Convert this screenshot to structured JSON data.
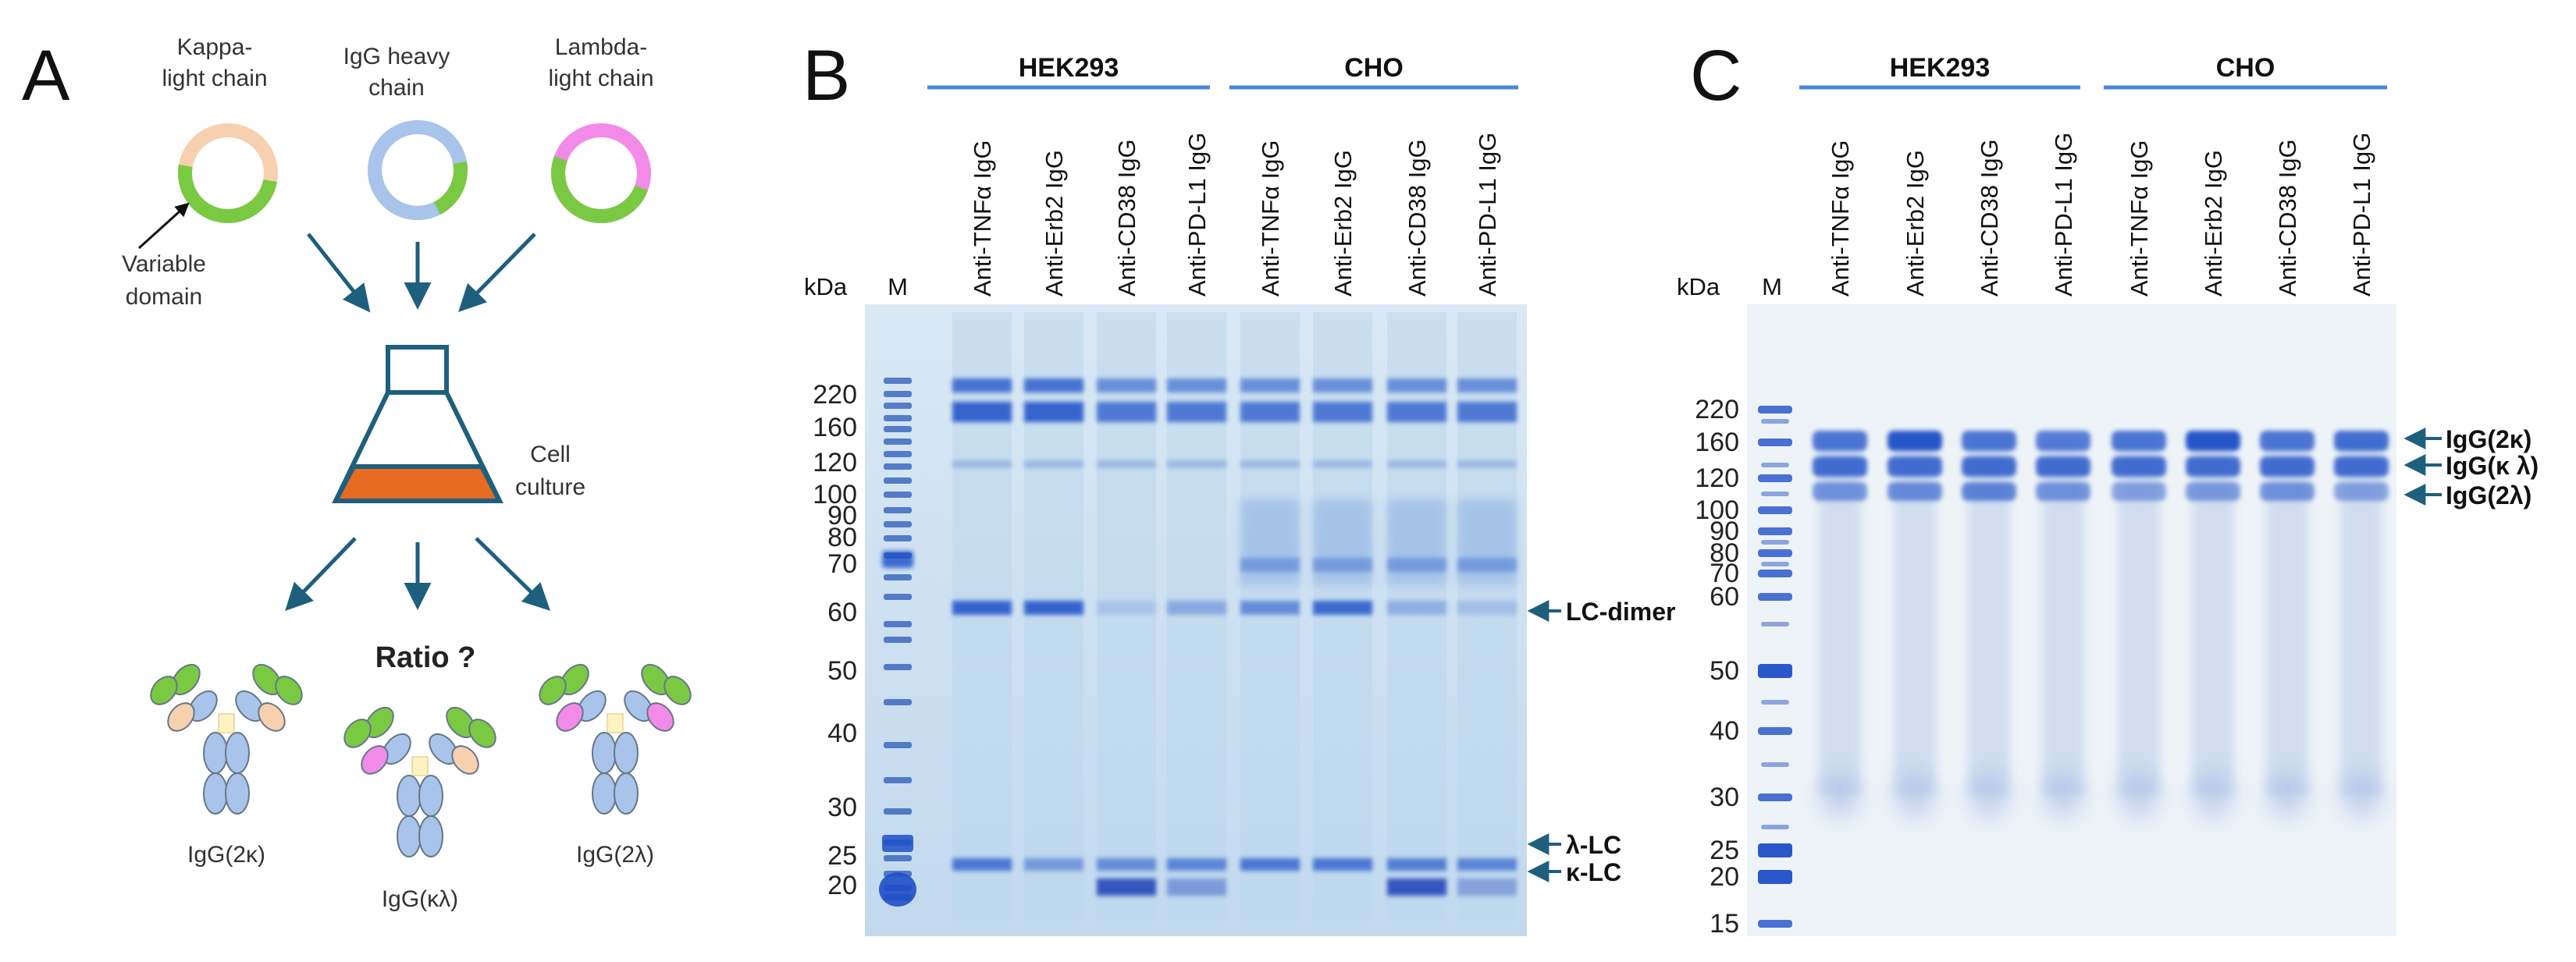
{
  "panel_a": {
    "letter": "A",
    "plasmids": [
      {
        "label_line1": "Kappa-",
        "label_line2": "light chain"
      },
      {
        "label_line1": "IgG heavy",
        "label_line2": "chain"
      },
      {
        "label_line1": "Lambda-",
        "label_line2": "light chain"
      }
    ],
    "variable_domain_line1": "Variable",
    "variable_domain_line2": "domain",
    "cell_culture_line1": "Cell",
    "cell_culture_line2": "culture",
    "ratio_label": "Ratio ?",
    "products": [
      "IgG(2κ)",
      "IgG(κλ)",
      "IgG(2λ)"
    ],
    "colors": {
      "kappa": "#f7d0b0",
      "heavy": "#a8c4ea",
      "lambda": "#f28ae8",
      "variable": "#7ac943",
      "arrow": "#1f5f7e",
      "culture": "#e76a23",
      "flask": "#1f5f7e"
    }
  },
  "panel_b": {
    "letter": "B",
    "group_labels": [
      "HEK293",
      "CHO"
    ],
    "lane_labels": [
      "Anti-TNFα IgG",
      "Anti-Erb2 IgG",
      "Anti-CD38 IgG",
      "Anti-PD-L1 IgG",
      "Anti-TNFα IgG",
      "Anti-Erb2 IgG",
      "Anti-CD38 IgG",
      "Anti-PD-L1 IgG"
    ],
    "kda_label": "kDa",
    "marker_label": "M",
    "markers": [
      "220",
      "160",
      "120",
      "100",
      "90",
      "80",
      "70",
      "60",
      "50",
      "40",
      "30",
      "25",
      "20"
    ],
    "annotations": [
      "LC-dimer",
      "λ-LC",
      "κ-LC"
    ]
  },
  "panel_c": {
    "letter": "C",
    "group_labels": [
      "HEK293",
      "CHO"
    ],
    "lane_labels": [
      "Anti-TNFα IgG",
      "Anti-Erb2 IgG",
      "Anti-CD38 IgG",
      "Anti-PD-L1 IgG",
      "Anti-TNFα IgG",
      "Anti-Erb2 IgG",
      "Anti-CD38 IgG",
      "Anti-PD-L1 IgG"
    ],
    "kda_label": "kDa",
    "marker_label": "M",
    "markers": [
      "220",
      "160",
      "120",
      "100",
      "90",
      "80",
      "70",
      "60",
      "50",
      "40",
      "30",
      "25",
      "20",
      "15"
    ],
    "annotations": [
      "IgG(2κ)",
      "IgG(κ λ)",
      "IgG(2λ)"
    ]
  },
  "styles": {
    "group_bar_color": "#4a86d8",
    "gel_b_bg": "#c8def0",
    "gel_c_bg": "#eef3f7",
    "band_color": "#1f4fc8",
    "annotation_arrow": "#1f5f7e"
  }
}
